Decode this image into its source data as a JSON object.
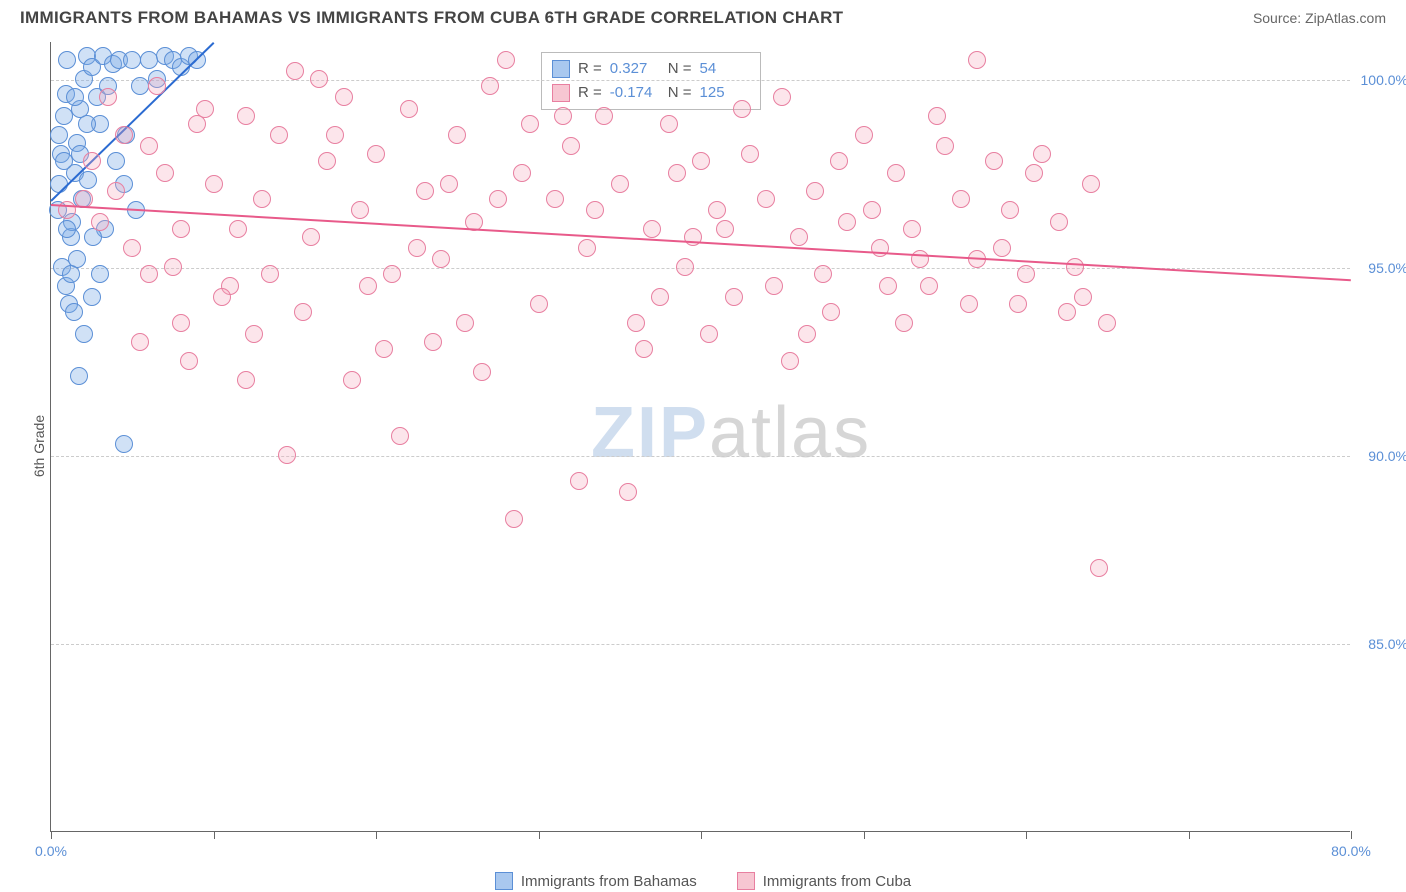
{
  "header": {
    "title": "IMMIGRANTS FROM BAHAMAS VS IMMIGRANTS FROM CUBA 6TH GRADE CORRELATION CHART",
    "source_label": "Source: ",
    "source_value": "ZipAtlas.com"
  },
  "chart": {
    "type": "scatter",
    "ylabel": "6th Grade",
    "background_color": "#ffffff",
    "grid_color": "#cccccc",
    "axis_color": "#666666",
    "xlim": [
      0,
      80
    ],
    "ylim": [
      80,
      101
    ],
    "xtick_positions": [
      0,
      10,
      20,
      30,
      40,
      50,
      60,
      70,
      80
    ],
    "xtick_labels": [
      "0.0%",
      "",
      "",
      "",
      "",
      "",
      "",
      "",
      "80.0%"
    ],
    "ytick_positions": [
      85,
      90,
      95,
      100
    ],
    "ytick_labels": [
      "85.0%",
      "90.0%",
      "95.0%",
      "100.0%"
    ],
    "watermark": {
      "zip": "ZIP",
      "atlas": "atlas"
    },
    "marker_radius": 9,
    "stats_box": {
      "rows": [
        {
          "swatch_fill": "#a9c8ef",
          "swatch_border": "#5b8fd6",
          "r_label": "R =",
          "r_value": "0.327",
          "n_label": "N =",
          "n_value": "54"
        },
        {
          "swatch_fill": "#f7c6d2",
          "swatch_border": "#e87fa0",
          "r_label": "R =",
          "r_value": "-0.174",
          "n_label": "N =",
          "n_value": "125"
        }
      ]
    },
    "bottom_legend": [
      {
        "swatch_fill": "#a9c8ef",
        "swatch_border": "#5b8fd6",
        "label": "Immigrants from Bahamas"
      },
      {
        "swatch_fill": "#f7c6d2",
        "swatch_border": "#e87fa0",
        "label": "Immigrants from Cuba"
      }
    ],
    "series": [
      {
        "name": "bahamas",
        "marker_fill": "rgba(120,170,230,0.35)",
        "marker_border": "#5b8fd6",
        "trend_color": "#2b6bd1",
        "trend": {
          "x1": 0,
          "y1": 96.8,
          "x2": 10,
          "y2": 101.0
        },
        "points": [
          [
            0.4,
            96.5
          ],
          [
            0.5,
            97.2
          ],
          [
            0.6,
            98.0
          ],
          [
            0.8,
            99.0
          ],
          [
            0.9,
            99.6
          ],
          [
            1.0,
            100.5
          ],
          [
            1.2,
            95.8
          ],
          [
            1.3,
            96.2
          ],
          [
            1.5,
            97.5
          ],
          [
            1.6,
            98.3
          ],
          [
            1.8,
            99.2
          ],
          [
            2.0,
            100.0
          ],
          [
            2.2,
            100.6
          ],
          [
            0.7,
            95.0
          ],
          [
            0.9,
            94.5
          ],
          [
            1.1,
            94.0
          ],
          [
            1.4,
            93.8
          ],
          [
            1.6,
            95.2
          ],
          [
            2.5,
            100.3
          ],
          [
            2.8,
            99.5
          ],
          [
            3.0,
            98.8
          ],
          [
            3.2,
            100.6
          ],
          [
            3.5,
            99.8
          ],
          [
            3.8,
            100.4
          ],
          [
            4.2,
            100.5
          ],
          [
            4.6,
            98.5
          ],
          [
            5.0,
            100.5
          ],
          [
            5.5,
            99.8
          ],
          [
            6.0,
            100.5
          ],
          [
            6.5,
            100.0
          ],
          [
            7.0,
            100.6
          ],
          [
            7.5,
            100.5
          ],
          [
            8.0,
            100.3
          ],
          [
            8.5,
            100.6
          ],
          [
            9.0,
            100.5
          ],
          [
            4.0,
            97.8
          ],
          [
            4.5,
            97.2
          ],
          [
            5.2,
            96.5
          ],
          [
            3.3,
            96.0
          ],
          [
            2.6,
            95.8
          ],
          [
            1.9,
            96.8
          ],
          [
            2.3,
            97.3
          ],
          [
            0.5,
            98.5
          ],
          [
            0.8,
            97.8
          ],
          [
            1.0,
            96.0
          ],
          [
            1.2,
            94.8
          ],
          [
            2.0,
            93.2
          ],
          [
            2.5,
            94.2
          ],
          [
            3.0,
            94.8
          ],
          [
            1.5,
            99.5
          ],
          [
            1.8,
            98.0
          ],
          [
            2.2,
            98.8
          ],
          [
            4.5,
            90.3
          ],
          [
            1.7,
            92.1
          ]
        ]
      },
      {
        "name": "cuba",
        "marker_fill": "rgba(245,170,190,0.30)",
        "marker_border": "#e87fa0",
        "trend_color": "#e85a8a",
        "trend": {
          "x1": 0,
          "y1": 96.7,
          "x2": 80,
          "y2": 94.7
        },
        "points": [
          [
            1.0,
            96.5
          ],
          [
            2.0,
            96.8
          ],
          [
            3.0,
            96.2
          ],
          [
            4.0,
            97.0
          ],
          [
            5.0,
            95.5
          ],
          [
            6.0,
            98.2
          ],
          [
            7.0,
            97.5
          ],
          [
            8.0,
            96.0
          ],
          [
            9.0,
            98.8
          ],
          [
            10.0,
            97.2
          ],
          [
            11.0,
            94.5
          ],
          [
            12.0,
            99.0
          ],
          [
            13.0,
            96.8
          ],
          [
            14.0,
            98.5
          ],
          [
            15.0,
            100.2
          ],
          [
            16.0,
            95.8
          ],
          [
            17.0,
            97.8
          ],
          [
            18.0,
            99.5
          ],
          [
            19.0,
            96.5
          ],
          [
            20.0,
            98.0
          ],
          [
            21.0,
            94.8
          ],
          [
            22.0,
            99.2
          ],
          [
            23.0,
            97.0
          ],
          [
            24.0,
            95.2
          ],
          [
            25.0,
            98.5
          ],
          [
            26.0,
            96.2
          ],
          [
            27.0,
            99.8
          ],
          [
            28.0,
            100.5
          ],
          [
            29.0,
            97.5
          ],
          [
            30.0,
            94.0
          ],
          [
            31.0,
            96.8
          ],
          [
            32.0,
            98.2
          ],
          [
            33.0,
            95.5
          ],
          [
            34.0,
            99.0
          ],
          [
            35.0,
            97.2
          ],
          [
            36.0,
            93.5
          ],
          [
            37.0,
            96.0
          ],
          [
            38.0,
            98.8
          ],
          [
            39.0,
            95.0
          ],
          [
            40.0,
            97.8
          ],
          [
            41.0,
            96.5
          ],
          [
            42.0,
            94.2
          ],
          [
            43.0,
            98.0
          ],
          [
            44.0,
            96.8
          ],
          [
            45.0,
            99.5
          ],
          [
            46.0,
            95.8
          ],
          [
            47.0,
            97.0
          ],
          [
            48.0,
            93.8
          ],
          [
            49.0,
            96.2
          ],
          [
            50.0,
            98.5
          ],
          [
            51.0,
            95.5
          ],
          [
            52.0,
            97.5
          ],
          [
            53.0,
            96.0
          ],
          [
            54.0,
            94.5
          ],
          [
            55.0,
            98.2
          ],
          [
            56.0,
            96.8
          ],
          [
            57.0,
            95.2
          ],
          [
            58.0,
            97.8
          ],
          [
            59.0,
            96.5
          ],
          [
            60.0,
            94.8
          ],
          [
            61.0,
            98.0
          ],
          [
            62.0,
            96.2
          ],
          [
            63.0,
            95.0
          ],
          [
            64.0,
            97.2
          ],
          [
            65.0,
            93.5
          ],
          [
            5.5,
            93.0
          ],
          [
            8.5,
            92.5
          ],
          [
            12.5,
            93.2
          ],
          [
            14.5,
            90.0
          ],
          [
            18.5,
            92.0
          ],
          [
            21.5,
            90.5
          ],
          [
            25.5,
            93.5
          ],
          [
            28.5,
            88.3
          ],
          [
            32.5,
            89.3
          ],
          [
            36.5,
            92.8
          ],
          [
            40.5,
            93.2
          ],
          [
            10.5,
            94.2
          ],
          [
            3.5,
            99.5
          ],
          [
            6.5,
            99.8
          ],
          [
            9.5,
            99.2
          ],
          [
            13.5,
            94.8
          ],
          [
            17.5,
            98.5
          ],
          [
            24.5,
            97.2
          ],
          [
            31.5,
            99.0
          ],
          [
            38.5,
            97.5
          ],
          [
            44.5,
            94.5
          ],
          [
            50.5,
            96.5
          ],
          [
            56.5,
            94.0
          ],
          [
            62.5,
            93.8
          ],
          [
            45.5,
            92.5
          ],
          [
            35.5,
            89.0
          ],
          [
            7.5,
            95.0
          ],
          [
            11.5,
            96.0
          ],
          [
            15.5,
            93.8
          ],
          [
            19.5,
            94.5
          ],
          [
            23.5,
            93.0
          ],
          [
            27.5,
            96.8
          ],
          [
            33.5,
            96.5
          ],
          [
            39.5,
            95.8
          ],
          [
            46.5,
            93.2
          ],
          [
            52.5,
            93.5
          ],
          [
            58.5,
            95.5
          ],
          [
            63.5,
            94.2
          ],
          [
            2.5,
            97.8
          ],
          [
            4.5,
            98.5
          ],
          [
            16.5,
            100.0
          ],
          [
            29.5,
            98.8
          ],
          [
            42.5,
            99.2
          ],
          [
            48.5,
            97.8
          ],
          [
            54.5,
            99.0
          ],
          [
            60.5,
            97.5
          ],
          [
            57.0,
            100.5
          ],
          [
            12.0,
            92.0
          ],
          [
            20.5,
            92.8
          ],
          [
            26.5,
            92.2
          ],
          [
            41.5,
            96.0
          ],
          [
            47.5,
            94.8
          ],
          [
            53.5,
            95.2
          ],
          [
            59.5,
            94.0
          ],
          [
            64.5,
            87.0
          ],
          [
            8.0,
            93.5
          ],
          [
            22.5,
            95.5
          ],
          [
            37.5,
            94.2
          ],
          [
            51.5,
            94.5
          ],
          [
            6.0,
            94.8
          ]
        ]
      }
    ]
  }
}
